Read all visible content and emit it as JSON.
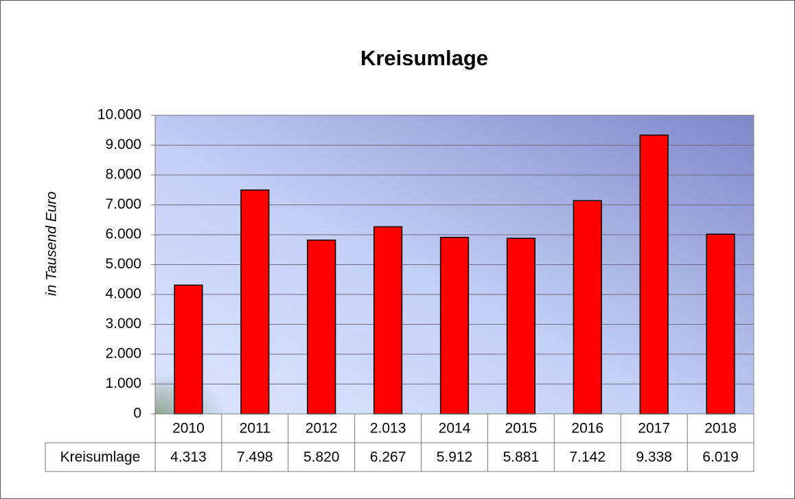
{
  "chart_data": {
    "type": "bar",
    "title": "Kreisumlage",
    "y_label": "in Tausend Euro",
    "categories": [
      "2010",
      "2011",
      "2012",
      "2.013",
      "2014",
      "2015",
      "2016",
      "2017",
      "2018"
    ],
    "series": [
      {
        "name": "Kreisumlage",
        "color": "#ff0000",
        "values": [
          4313,
          7498,
          5820,
          6267,
          5912,
          5881,
          7142,
          9338,
          6019
        ],
        "value_labels": [
          "4.313",
          "7.498",
          "5.820",
          "6.267",
          "5.912",
          "5.881",
          "7.142",
          "9.338",
          "6.019"
        ]
      }
    ],
    "ylim": [
      0,
      10000
    ],
    "yticks": [
      0,
      {
        "value": 1000,
        "label": "1.000"
      },
      {
        "value": 2000,
        "label": "2.000"
      },
      {
        "value": 3000,
        "label": "3.000"
      },
      {
        "value": 4000,
        "label": "4.000"
      },
      {
        "value": 5000,
        "label": "5.000"
      },
      {
        "value": 6000,
        "label": "6.000"
      },
      {
        "value": 7000,
        "label": "7.000"
      },
      {
        "value": 8000,
        "label": "8.000"
      },
      {
        "value": 9000,
        "label": "9.000"
      },
      {
        "value": 10000,
        "label": "10.000"
      }
    ],
    "grid": true,
    "data_table": true
  }
}
